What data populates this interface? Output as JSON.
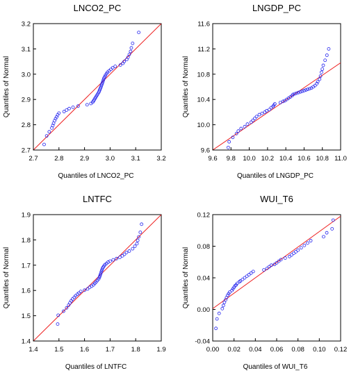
{
  "chart_data": [
    {
      "type": "scatter",
      "title": "LNCO2_PC",
      "xlabel": "Quantiles of LNCO2_PC",
      "ylabel": "Quantiles of Normal",
      "xlim": [
        2.7,
        3.2
      ],
      "ylim": [
        2.7,
        3.2
      ],
      "xticks": [
        "2.7",
        "2.8",
        "2.9",
        "3.0",
        "3.1",
        "3.2"
      ],
      "yticks": [
        "2.7",
        "2.8",
        "2.9",
        "3.0",
        "3.1",
        "3.2"
      ],
      "reference_line": [
        [
          2.7,
          2.7
        ],
        [
          3.2,
          3.2
        ]
      ],
      "colors": {
        "points": "#2222ee",
        "reference": "#ee2222"
      },
      "points": [
        [
          2.742,
          2.722
        ],
        [
          2.752,
          2.756
        ],
        [
          2.762,
          2.772
        ],
        [
          2.772,
          2.787
        ],
        [
          2.776,
          2.797
        ],
        [
          2.779,
          2.806
        ],
        [
          2.783,
          2.816
        ],
        [
          2.787,
          2.824
        ],
        [
          2.791,
          2.831
        ],
        [
          2.795,
          2.839
        ],
        [
          2.8,
          2.846
        ],
        [
          2.82,
          2.852
        ],
        [
          2.83,
          2.858
        ],
        [
          2.84,
          2.864
        ],
        [
          2.855,
          2.869
        ],
        [
          2.875,
          2.874
        ],
        [
          2.91,
          2.879
        ],
        [
          2.925,
          2.884
        ],
        [
          2.932,
          2.889
        ],
        [
          2.935,
          2.894
        ],
        [
          2.938,
          2.899
        ],
        [
          2.941,
          2.904
        ],
        [
          2.944,
          2.909
        ],
        [
          2.947,
          2.914
        ],
        [
          2.95,
          2.919
        ],
        [
          2.953,
          2.924
        ],
        [
          2.956,
          2.929
        ],
        [
          2.958,
          2.934
        ],
        [
          2.96,
          2.939
        ],
        [
          2.962,
          2.944
        ],
        [
          2.964,
          2.949
        ],
        [
          2.966,
          2.955
        ],
        [
          2.968,
          2.96
        ],
        [
          2.97,
          2.966
        ],
        [
          2.972,
          2.972
        ],
        [
          2.974,
          2.978
        ],
        [
          2.976,
          2.984
        ],
        [
          2.979,
          2.99
        ],
        [
          2.982,
          2.996
        ],
        [
          2.986,
          3.002
        ],
        [
          2.99,
          3.008
        ],
        [
          2.996,
          3.013
        ],
        [
          3.003,
          3.019
        ],
        [
          3.01,
          3.025
        ],
        [
          3.02,
          3.031
        ],
        [
          3.04,
          3.036
        ],
        [
          3.05,
          3.043
        ],
        [
          3.055,
          3.05
        ],
        [
          3.065,
          3.058
        ],
        [
          3.07,
          3.067
        ],
        [
          3.075,
          3.078
        ],
        [
          3.08,
          3.09
        ],
        [
          3.083,
          3.104
        ],
        [
          3.088,
          3.122
        ],
        [
          3.112,
          3.165
        ]
      ]
    },
    {
      "type": "scatter",
      "title": "LNGDP_PC",
      "xlabel": "Quantiles of LNGDP_PC",
      "ylabel": "Quantiles of Normal",
      "xlim": [
        9.6,
        11.0
      ],
      "ylim": [
        9.6,
        11.6
      ],
      "xticks": [
        "9.6",
        "9.8",
        "10.0",
        "10.2",
        "10.4",
        "10.6",
        "10.8",
        "11.0"
      ],
      "yticks": [
        "9.6",
        "10.0",
        "10.4",
        "10.8",
        "11.2",
        "11.6"
      ],
      "reference_line": [
        [
          9.6,
          9.6
        ],
        [
          11.0,
          10.98
        ]
      ],
      "colors": {
        "points": "#2222ee",
        "reference": "#ee2222"
      },
      "points": [
        [
          9.77,
          9.64
        ],
        [
          9.78,
          9.73
        ],
        [
          9.82,
          9.8
        ],
        [
          9.86,
          9.86
        ],
        [
          9.88,
          9.9
        ],
        [
          9.91,
          9.94
        ],
        [
          9.95,
          9.97
        ],
        [
          9.98,
          10.01
        ],
        [
          10.02,
          10.04
        ],
        [
          10.04,
          10.07
        ],
        [
          10.06,
          10.1
        ],
        [
          10.08,
          10.13
        ],
        [
          10.11,
          10.16
        ],
        [
          10.14,
          10.18
        ],
        [
          10.17,
          10.2
        ],
        [
          10.19,
          10.22
        ],
        [
          10.22,
          10.24
        ],
        [
          10.24,
          10.27
        ],
        [
          10.26,
          10.29
        ],
        [
          10.27,
          10.31
        ],
        [
          10.28,
          10.33
        ],
        [
          10.34,
          10.35
        ],
        [
          10.37,
          10.37
        ],
        [
          10.39,
          10.38
        ],
        [
          10.41,
          10.4
        ],
        [
          10.43,
          10.42
        ],
        [
          10.45,
          10.44
        ],
        [
          10.47,
          10.46
        ],
        [
          10.48,
          10.48
        ],
        [
          10.5,
          10.49
        ],
        [
          10.52,
          10.5
        ],
        [
          10.54,
          10.51
        ],
        [
          10.56,
          10.52
        ],
        [
          10.58,
          10.53
        ],
        [
          10.6,
          10.54
        ],
        [
          10.62,
          10.55
        ],
        [
          10.64,
          10.56
        ],
        [
          10.66,
          10.57
        ],
        [
          10.68,
          10.58
        ],
        [
          10.7,
          10.6
        ],
        [
          10.72,
          10.62
        ],
        [
          10.74,
          10.65
        ],
        [
          10.75,
          10.68
        ],
        [
          10.77,
          10.72
        ],
        [
          10.78,
          10.77
        ],
        [
          10.79,
          10.83
        ],
        [
          10.8,
          10.88
        ],
        [
          10.81,
          10.94
        ],
        [
          10.83,
          11.02
        ],
        [
          10.85,
          11.1
        ],
        [
          10.87,
          11.2
        ]
      ]
    },
    {
      "type": "scatter",
      "title": "LNTFC",
      "xlabel": "Quantiles of LNTFC",
      "ylabel": "Quantiles of Normal",
      "xlim": [
        1.4,
        1.9
      ],
      "ylim": [
        1.4,
        1.9
      ],
      "xticks": [
        "1.4",
        "1.5",
        "1.6",
        "1.7",
        "1.8",
        "1.9"
      ],
      "yticks": [
        "1.4",
        "1.5",
        "1.6",
        "1.7",
        "1.8",
        "1.9"
      ],
      "reference_line": [
        [
          1.4,
          1.4
        ],
        [
          1.9,
          1.9
        ]
      ],
      "colors": {
        "points": "#2222ee",
        "reference": "#ee2222"
      },
      "points": [
        [
          1.495,
          1.467
        ],
        [
          1.497,
          1.502
        ],
        [
          1.518,
          1.518
        ],
        [
          1.53,
          1.531
        ],
        [
          1.538,
          1.542
        ],
        [
          1.543,
          1.551
        ],
        [
          1.548,
          1.559
        ],
        [
          1.553,
          1.566
        ],
        [
          1.56,
          1.573
        ],
        [
          1.565,
          1.579
        ],
        [
          1.572,
          1.585
        ],
        [
          1.578,
          1.59
        ],
        [
          1.585,
          1.596
        ],
        [
          1.6,
          1.601
        ],
        [
          1.612,
          1.606
        ],
        [
          1.62,
          1.612
        ],
        [
          1.628,
          1.617
        ],
        [
          1.635,
          1.622
        ],
        [
          1.64,
          1.628
        ],
        [
          1.645,
          1.633
        ],
        [
          1.65,
          1.639
        ],
        [
          1.655,
          1.645
        ],
        [
          1.658,
          1.651
        ],
        [
          1.66,
          1.657
        ],
        [
          1.662,
          1.663
        ],
        [
          1.664,
          1.669
        ],
        [
          1.666,
          1.675
        ],
        [
          1.668,
          1.681
        ],
        [
          1.67,
          1.687
        ],
        [
          1.673,
          1.692
        ],
        [
          1.676,
          1.697
        ],
        [
          1.68,
          1.702
        ],
        [
          1.686,
          1.707
        ],
        [
          1.692,
          1.712
        ],
        [
          1.7,
          1.716
        ],
        [
          1.712,
          1.721
        ],
        [
          1.725,
          1.726
        ],
        [
          1.738,
          1.731
        ],
        [
          1.748,
          1.737
        ],
        [
          1.756,
          1.743
        ],
        [
          1.764,
          1.75
        ],
        [
          1.775,
          1.756
        ],
        [
          1.788,
          1.765
        ],
        [
          1.797,
          1.775
        ],
        [
          1.805,
          1.785
        ],
        [
          1.808,
          1.798
        ],
        [
          1.812,
          1.812
        ],
        [
          1.818,
          1.83
        ],
        [
          1.823,
          1.862
        ]
      ]
    },
    {
      "type": "scatter",
      "title": "WUI_T6",
      "xlabel": "Quantiles of WUI_T6",
      "ylabel": "Quantiles of Normal",
      "xlim": [
        0.0,
        0.12
      ],
      "ylim": [
        -0.04,
        0.12
      ],
      "xticks": [
        "0.00",
        "0.02",
        "0.04",
        "0.06",
        "0.08",
        "0.10",
        "0.12"
      ],
      "yticks": [
        "-0.04",
        "0.00",
        "0.04",
        "0.08",
        "0.12"
      ],
      "reference_line": [
        [
          0.0,
          0.001
        ],
        [
          0.12,
          0.118
        ]
      ],
      "colors": {
        "points": "#2222ee",
        "reference": "#ee2222"
      },
      "points": [
        [
          0.003,
          -0.024
        ],
        [
          0.004,
          -0.012
        ],
        [
          0.006,
          -0.005
        ],
        [
          0.009,
          0.001
        ],
        [
          0.01,
          0.005
        ],
        [
          0.011,
          0.009
        ],
        [
          0.012,
          0.012
        ],
        [
          0.013,
          0.015
        ],
        [
          0.014,
          0.018
        ],
        [
          0.015,
          0.02
        ],
        [
          0.016,
          0.022
        ],
        [
          0.018,
          0.024
        ],
        [
          0.019,
          0.026
        ],
        [
          0.02,
          0.028
        ],
        [
          0.021,
          0.03
        ],
        [
          0.022,
          0.031
        ],
        [
          0.023,
          0.033
        ],
        [
          0.025,
          0.035
        ],
        [
          0.026,
          0.036
        ],
        [
          0.028,
          0.038
        ],
        [
          0.03,
          0.04
        ],
        [
          0.032,
          0.042
        ],
        [
          0.034,
          0.044
        ],
        [
          0.036,
          0.046
        ],
        [
          0.038,
          0.048
        ],
        [
          0.048,
          0.05
        ],
        [
          0.051,
          0.052
        ],
        [
          0.053,
          0.054
        ],
        [
          0.055,
          0.056
        ],
        [
          0.058,
          0.057
        ],
        [
          0.06,
          0.059
        ],
        [
          0.062,
          0.061
        ],
        [
          0.064,
          0.063
        ],
        [
          0.068,
          0.065
        ],
        [
          0.072,
          0.067
        ],
        [
          0.074,
          0.069
        ],
        [
          0.076,
          0.071
        ],
        [
          0.078,
          0.073
        ],
        [
          0.08,
          0.075
        ],
        [
          0.083,
          0.078
        ],
        [
          0.086,
          0.081
        ],
        [
          0.089,
          0.084
        ],
        [
          0.092,
          0.087
        ],
        [
          0.104,
          0.092
        ],
        [
          0.107,
          0.097
        ],
        [
          0.112,
          0.102
        ],
        [
          0.113,
          0.113
        ]
      ]
    }
  ]
}
